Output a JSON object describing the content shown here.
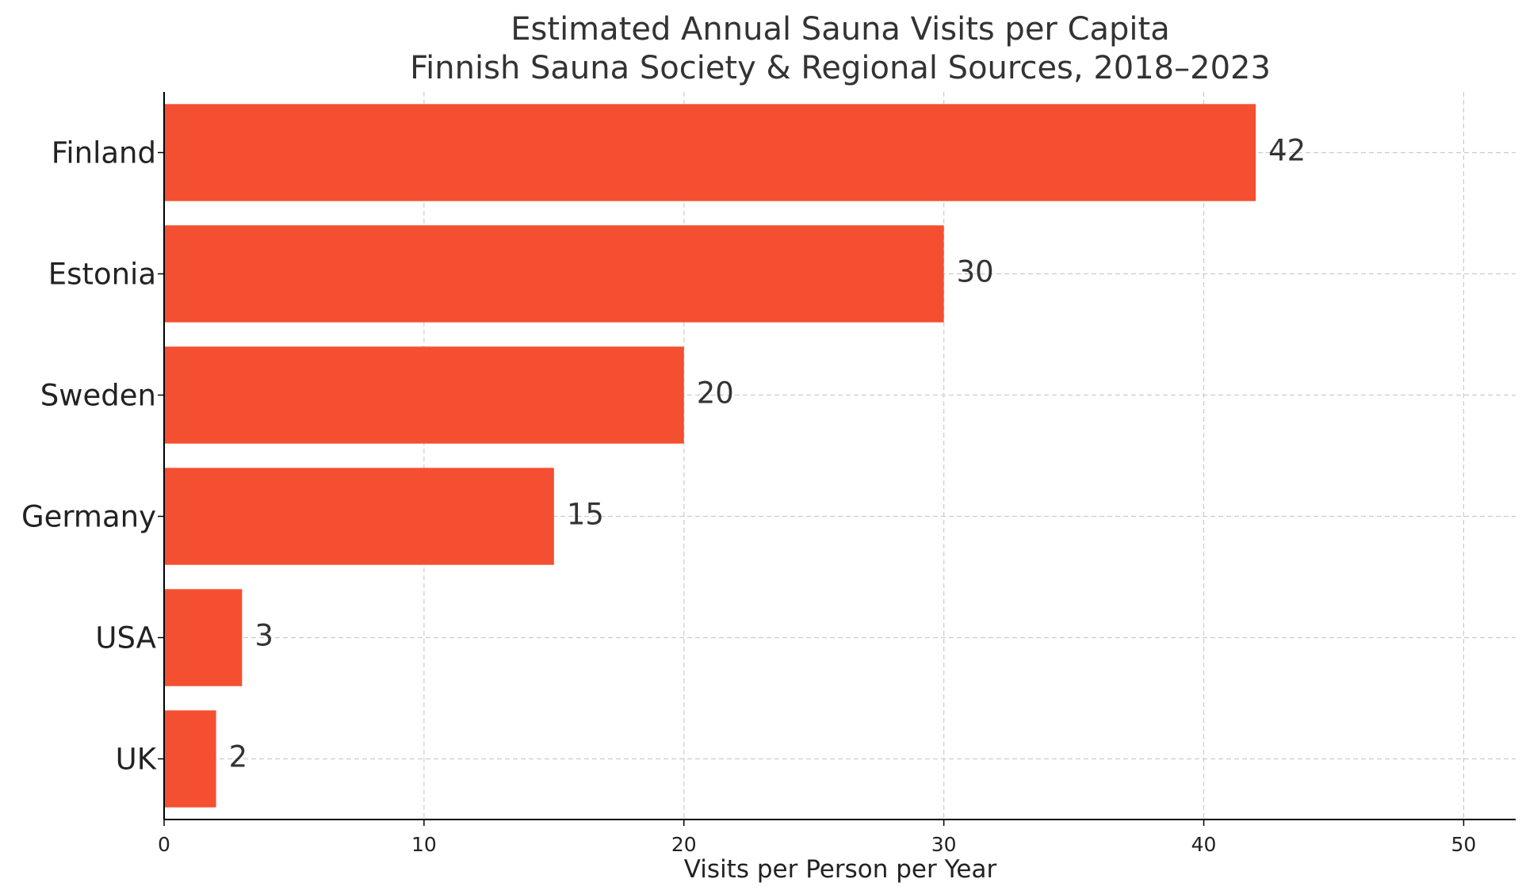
{
  "chart_data": {
    "type": "bar",
    "orientation": "horizontal",
    "title": "Estimated Annual Sauna Visits per Capita",
    "subtitle": "Finnish Sauna Society & Regional Sources, 2018–2023",
    "xlabel": "Visits per Person per Year",
    "ylabel": "",
    "categories": [
      "Finland",
      "Estonia",
      "Sweden",
      "Germany",
      "USA",
      "UK"
    ],
    "values": [
      42,
      30,
      20,
      15,
      3,
      2
    ],
    "xlim": [
      0,
      52
    ],
    "xticks": [
      0,
      10,
      20,
      30,
      40,
      50
    ],
    "grid": true,
    "legend": "none",
    "bar_color": "#f44f30"
  }
}
